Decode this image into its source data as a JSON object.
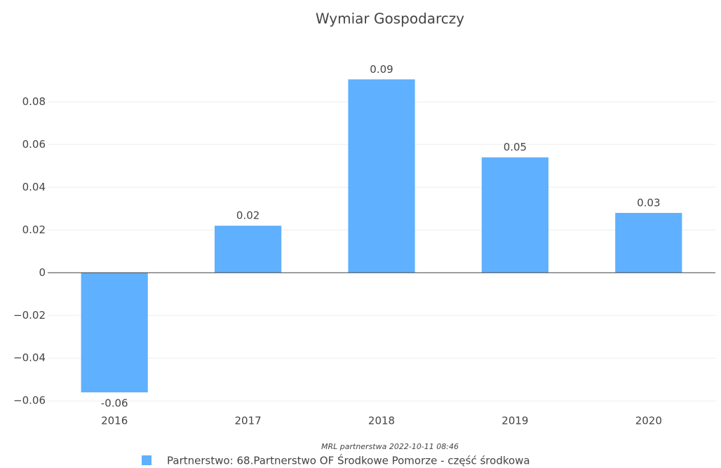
{
  "chart_data": {
    "type": "bar",
    "title": "Wymiar Gospodarczy",
    "categories": [
      "2016",
      "2017",
      "2018",
      "2019",
      "2020"
    ],
    "series": [
      {
        "name": "Partnerstwo: 68.Partnerstwo OF Środkowe Pomorze - część środkowa",
        "color": "#5fb0ff",
        "values": [
          -0.056,
          0.022,
          0.0905,
          0.054,
          0.028
        ],
        "value_labels": [
          "-0.06",
          "0.02",
          "0.09",
          "0.05",
          "0.03"
        ]
      }
    ],
    "ylim": [
      -0.0655,
      0.0965
    ],
    "yticks": [
      {
        "value": -0.06,
        "label": "−0.06"
      },
      {
        "value": -0.04,
        "label": "−0.04"
      },
      {
        "value": -0.02,
        "label": "−0.02"
      },
      0,
      0.02,
      0.04,
      0.06,
      0.08
    ],
    "grid": true,
    "annotation": "MRL partnerstwa 2022-10-11 08:46",
    "legend": "bottom"
  }
}
